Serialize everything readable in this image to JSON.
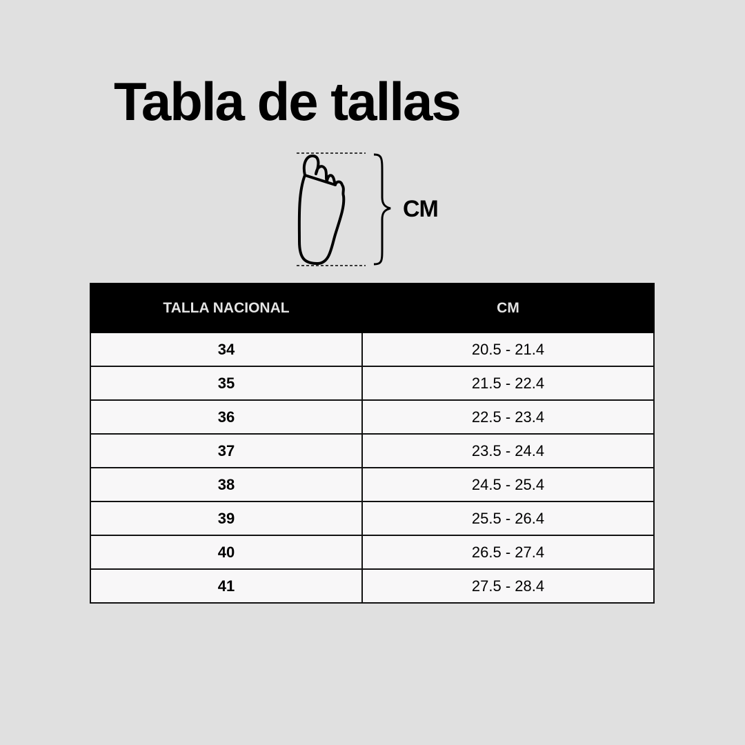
{
  "title": "Tabla de tallas",
  "illustration": {
    "icon": "foot-outline-icon",
    "label": "CM"
  },
  "table": {
    "headers": [
      "TALLA NACIONAL",
      "CM"
    ],
    "rows": [
      {
        "size": "34",
        "cm": "20.5 - 21.4"
      },
      {
        "size": "35",
        "cm": "21.5 - 22.4"
      },
      {
        "size": "36",
        "cm": "22.5 - 23.4"
      },
      {
        "size": "37",
        "cm": "23.5 - 24.4"
      },
      {
        "size": "38",
        "cm": "24.5 - 25.4"
      },
      {
        "size": "39",
        "cm": "25.5 - 26.4"
      },
      {
        "size": "40",
        "cm": "26.5 - 27.4"
      },
      {
        "size": "41",
        "cm": "27.5 - 28.4"
      }
    ]
  },
  "colors": {
    "background": "#e0e0e0",
    "header": "#000000",
    "cell": "#f8f7f8"
  }
}
